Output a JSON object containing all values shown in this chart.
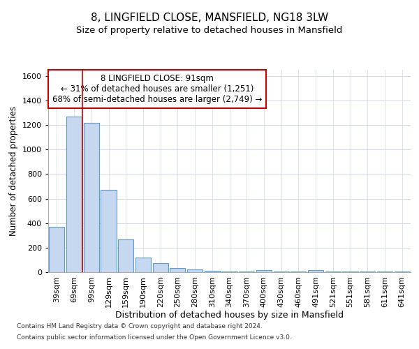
{
  "title1": "8, LINGFIELD CLOSE, MANSFIELD, NG18 3LW",
  "title2": "Size of property relative to detached houses in Mansfield",
  "xlabel": "Distribution of detached houses by size in Mansfield",
  "ylabel": "Number of detached properties",
  "categories": [
    "39sqm",
    "69sqm",
    "99sqm",
    "129sqm",
    "159sqm",
    "190sqm",
    "220sqm",
    "250sqm",
    "280sqm",
    "310sqm",
    "340sqm",
    "370sqm",
    "400sqm",
    "430sqm",
    "460sqm",
    "491sqm",
    "521sqm",
    "551sqm",
    "581sqm",
    "611sqm",
    "641sqm"
  ],
  "values": [
    370,
    1270,
    1220,
    670,
    270,
    120,
    75,
    35,
    25,
    10,
    8,
    5,
    15,
    5,
    3,
    15,
    3,
    3,
    3,
    3,
    3
  ],
  "bar_color": "#c5d8f0",
  "bar_edge_color": "#5b9bd5",
  "bar_width": 0.9,
  "ylim": [
    0,
    1650
  ],
  "yticks": [
    0,
    200,
    400,
    600,
    800,
    1000,
    1200,
    1400,
    1600
  ],
  "red_line_x": 1.5,
  "annotation_text": "8 LINGFIELD CLOSE: 91sqm\n← 31% of detached houses are smaller (1,251)\n68% of semi-detached houses are larger (2,749) →",
  "annotation_box_color": "#ffffff",
  "annotation_box_edge": "#cc0000",
  "footer1": "Contains HM Land Registry data © Crown copyright and database right 2024.",
  "footer2": "Contains public sector information licensed under the Open Government Licence v3.0.",
  "bg_color": "#ffffff",
  "grid_color": "#d0d8e8",
  "title1_fontsize": 11,
  "title2_fontsize": 9.5,
  "tick_fontsize": 8,
  "xlabel_fontsize": 9,
  "ylabel_fontsize": 8.5,
  "annot_fontsize": 8.5,
  "footer_fontsize": 6.5
}
